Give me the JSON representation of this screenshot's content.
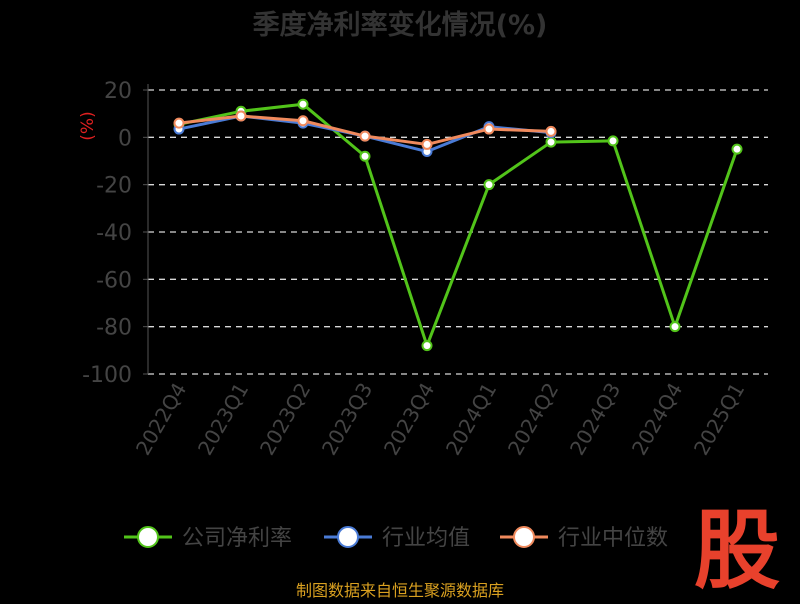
{
  "chart_data": {
    "type": "line",
    "title": "季度净利率变化情况(%)",
    "ylabel": "(%)",
    "xlabel": "",
    "ylim": [
      -100,
      20
    ],
    "yticks": [
      20,
      0,
      -20,
      -40,
      -60,
      -80,
      -100
    ],
    "grid": true,
    "legend_position": "bottom",
    "categories": [
      "2022Q4",
      "2023Q1",
      "2023Q2",
      "2023Q3",
      "2023Q4",
      "2024Q1",
      "2024Q2",
      "2024Q3",
      "2024Q4",
      "2025Q1"
    ],
    "series": [
      {
        "name": "公司净利率",
        "color": "#52c41a",
        "values": [
          5.5,
          11,
          14,
          -8,
          -88,
          -20,
          -2,
          -1.5,
          -80,
          -5
        ]
      },
      {
        "name": "行业均值",
        "color": "#4a7bd6",
        "values": [
          3.5,
          9,
          6,
          0.5,
          -6,
          4.5,
          2,
          null,
          null,
          null
        ]
      },
      {
        "name": "行业中位数",
        "color": "#f08a5d",
        "values": [
          6,
          9,
          7,
          0.5,
          -3,
          3.5,
          2.5,
          null,
          null,
          null
        ]
      }
    ]
  },
  "footer": {
    "source": "制图数据来自恒生聚源数据库"
  },
  "watermark": {
    "text": "股",
    "color": "#e8412c"
  }
}
